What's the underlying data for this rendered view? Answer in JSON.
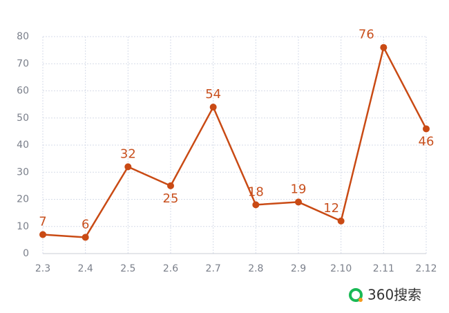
{
  "chart_data": {
    "type": "line",
    "categories": [
      "2.3",
      "2.4",
      "2.5",
      "2.6",
      "2.7",
      "2.8",
      "2.9",
      "2.10",
      "2.11",
      "2.12"
    ],
    "values": [
      7,
      6,
      32,
      25,
      54,
      18,
      19,
      12,
      76,
      46
    ],
    "color": "#c94a14",
    "ylim": [
      0,
      80
    ],
    "yticks": [
      0,
      10,
      20,
      30,
      40,
      50,
      60,
      70,
      80
    ],
    "grid": true,
    "watermark": "360搜索"
  }
}
